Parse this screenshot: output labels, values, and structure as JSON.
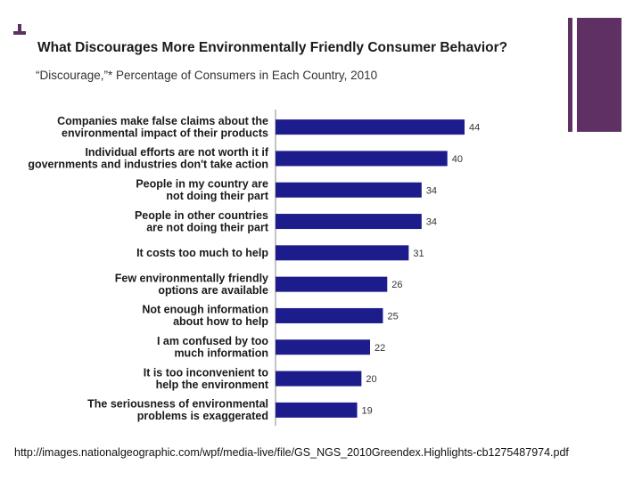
{
  "slide": {
    "source_text": "http://images.nationalgeographic.com/wpf/media-live/file/GS_NGS_2010Greendex.Highlights-cb1275487974.pdf",
    "accent_color": "#5e3063"
  },
  "chart_data": {
    "type": "bar",
    "orientation": "horizontal",
    "title": "What Discourages More Environmentally Friendly Consumer Behavior?",
    "subtitle": "“Discourage,”* Percentage of Consumers in Each Country, 2010",
    "categories": [
      [
        "Companies make false claims about the",
        "environmental impact of their products"
      ],
      [
        "Individual efforts are not worth it if",
        "governments and industries don't take action"
      ],
      [
        "People in my country are",
        "not doing their part"
      ],
      [
        "People in other countries",
        "are not doing their part"
      ],
      [
        "It costs too much to help"
      ],
      [
        "Few environmentally friendly",
        "options are available"
      ],
      [
        "Not enough information",
        "about how to help"
      ],
      [
        "I am confused by too",
        "much information"
      ],
      [
        "It is too inconvenient to",
        "help the environment"
      ],
      [
        "The seriousness of environmental",
        "problems is exaggerated"
      ]
    ],
    "values": [
      44,
      40,
      34,
      34,
      31,
      26,
      25,
      22,
      20,
      19
    ],
    "bar_color": "#1c1c8c",
    "axis_color": "#888888",
    "xlim": [
      0,
      44
    ],
    "legend": "none",
    "grid": false
  }
}
